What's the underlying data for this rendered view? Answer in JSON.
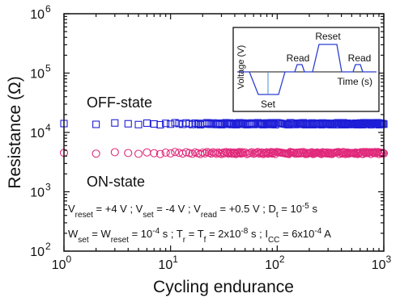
{
  "chart_data": {
    "type": "scatter",
    "title": "",
    "xlabel": "Cycling endurance",
    "ylabel": "Resistance (Ω)",
    "x_scale": "log",
    "y_scale": "log",
    "xlim": [
      1,
      1000
    ],
    "ylim": [
      100,
      1000000
    ],
    "grid": false,
    "x_ticks": [
      {
        "value": 1,
        "base": "10",
        "exp": "0"
      },
      {
        "value": 10,
        "base": "10",
        "exp": "1"
      },
      {
        "value": 100,
        "base": "10",
        "exp": "2"
      },
      {
        "value": 1000,
        "base": "10",
        "exp": "3"
      }
    ],
    "y_ticks": [
      {
        "value": 100,
        "base": "10",
        "exp": "2"
      },
      {
        "value": 1000,
        "base": "10",
        "exp": "3"
      },
      {
        "value": 10000,
        "base": "10",
        "exp": "4"
      },
      {
        "value": 100000,
        "base": "10",
        "exp": "5"
      },
      {
        "value": 1000000,
        "base": "10",
        "exp": "6"
      }
    ],
    "series": [
      {
        "name": "OFF-state",
        "marker": "square",
        "color": "#1f1fd6",
        "resistance": 14000,
        "x_from": 1,
        "x_to": 1000
      },
      {
        "name": "ON-state",
        "marker": "circle",
        "color": "#e0287a",
        "resistance": 4500,
        "x_from": 1,
        "x_to": 1000
      }
    ],
    "annotations": {
      "line1": [
        {
          "t": "V"
        },
        {
          "t": "reset",
          "s": "sub"
        },
        {
          "t": " = +4 V ; V"
        },
        {
          "t": "set",
          "s": "sub"
        },
        {
          "t": " = -4 V ; V"
        },
        {
          "t": "read",
          "s": "sub"
        },
        {
          "t": " = +0.5 V ; D"
        },
        {
          "t": "t",
          "s": "sub"
        },
        {
          "t": " = 10"
        },
        {
          "t": "-5",
          "s": "sup"
        },
        {
          "t": " s"
        }
      ],
      "line2": [
        {
          "t": "W"
        },
        {
          "t": "set",
          "s": "sub"
        },
        {
          "t": " = W"
        },
        {
          "t": "reset",
          "s": "sub"
        },
        {
          "t": " = 10"
        },
        {
          "t": "-4",
          "s": "sup"
        },
        {
          "t": " s ;  T"
        },
        {
          "t": "r",
          "s": "sub"
        },
        {
          "t": " = T"
        },
        {
          "t": "f",
          "s": "sub"
        },
        {
          "t": " = 2x10"
        },
        {
          "t": "-8",
          "s": "sup"
        },
        {
          "t": " s ; I"
        },
        {
          "t": "CC",
          "s": "sub"
        },
        {
          "t": " = 6x10"
        },
        {
          "t": "-4",
          "s": "sup"
        },
        {
          "t": " A"
        }
      ]
    },
    "inset": {
      "ylabel": "Voltage (V)",
      "xlabel": "Time (s)",
      "labels": {
        "set": "Set",
        "read": "Read",
        "reset": "Reset"
      },
      "color": "#2b3fcf"
    }
  }
}
